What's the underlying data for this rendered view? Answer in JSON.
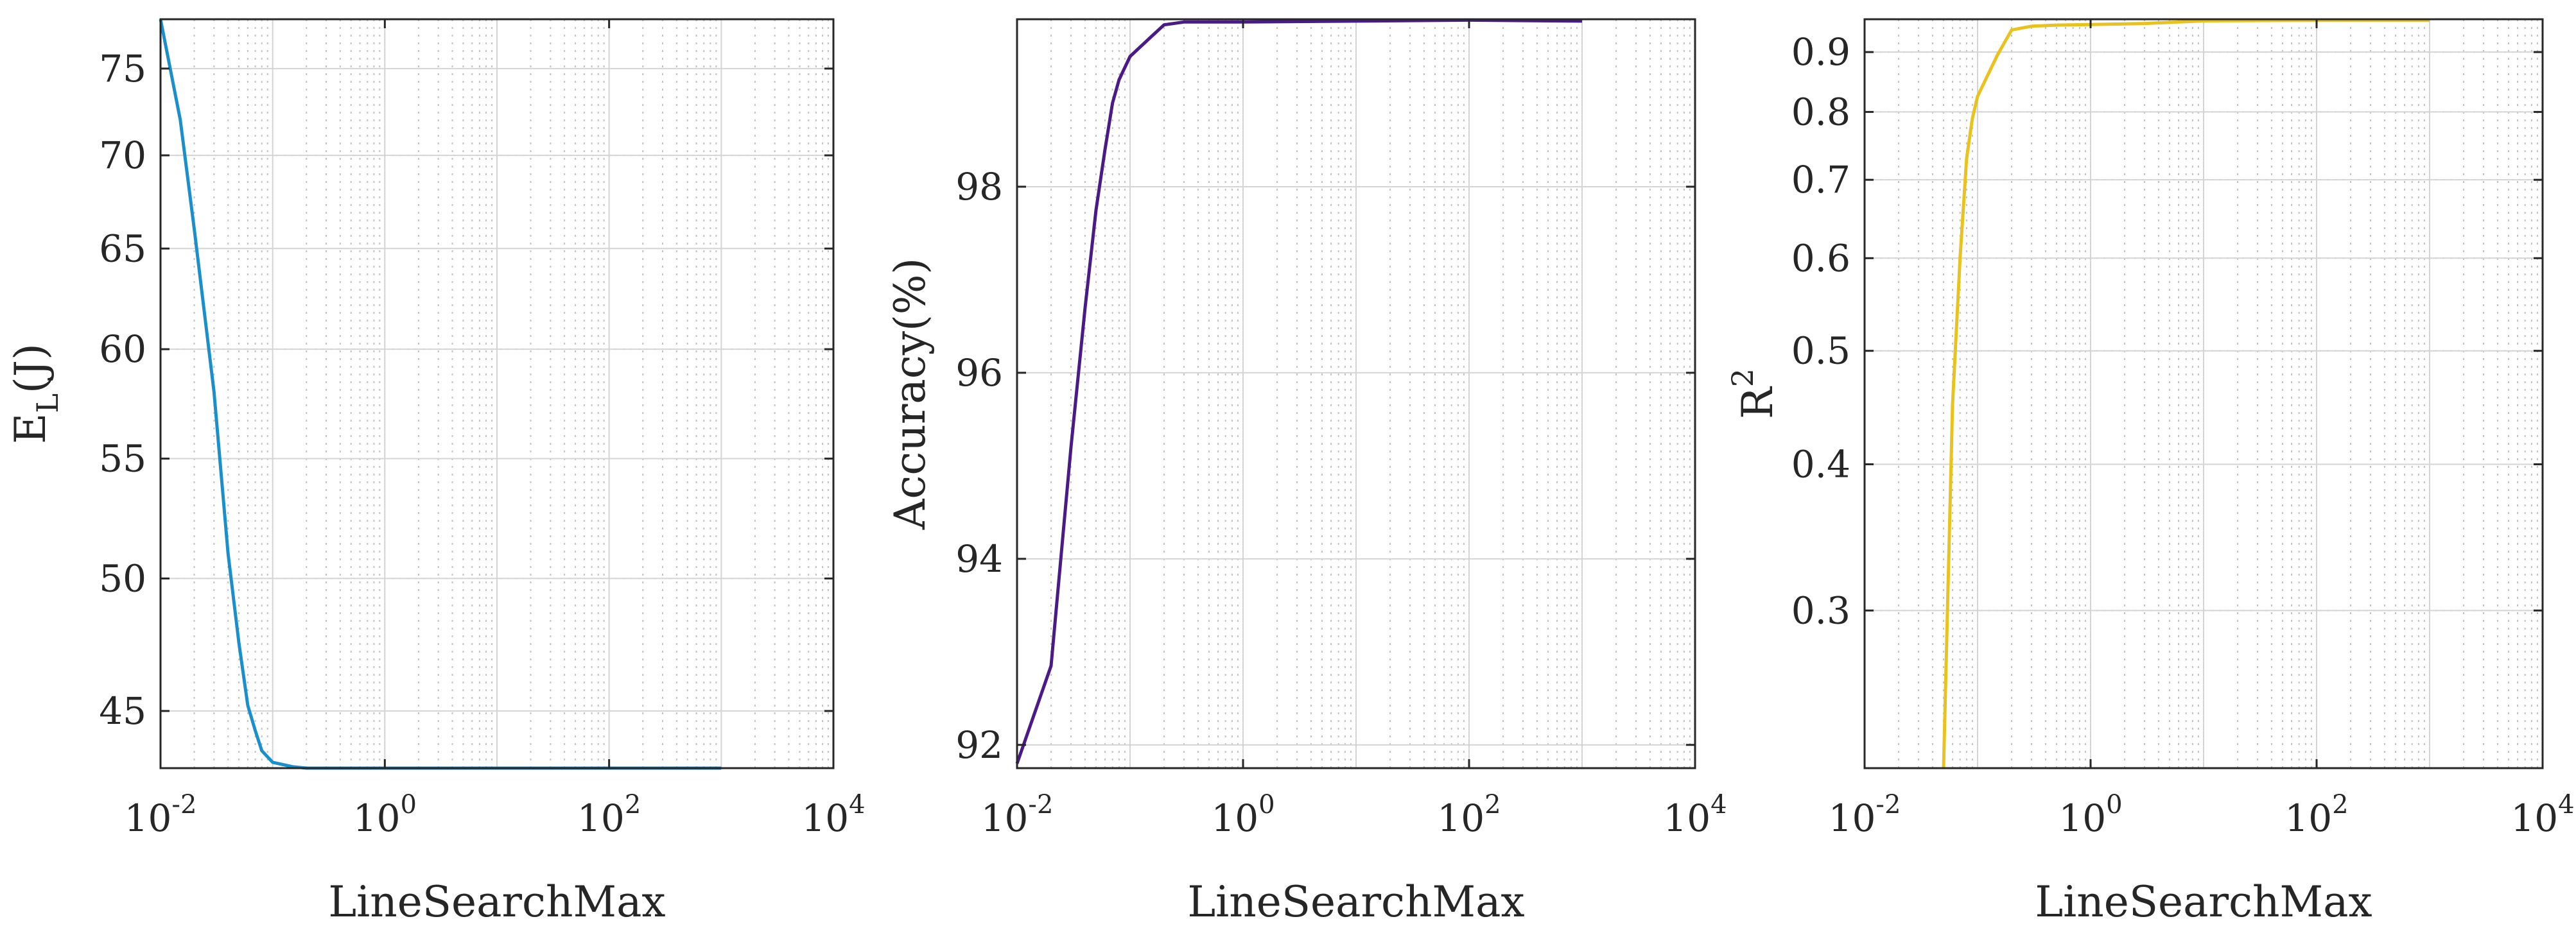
{
  "chart_data": [
    {
      "type": "line",
      "xscale": "log",
      "yscale": "log",
      "xlim": [
        0.01,
        10000
      ],
      "ylim": [
        43,
        78
      ],
      "xticks": [
        0.01,
        1,
        100,
        10000
      ],
      "xtick_base": [
        "10",
        "10",
        "10",
        "10"
      ],
      "xtick_exp": [
        "-2",
        "0",
        "2",
        "4"
      ],
      "yticks": [
        45,
        50,
        55,
        60,
        65,
        70,
        75
      ],
      "ytick_labels": [
        "45",
        "50",
        "55",
        "60",
        "65",
        "70",
        "75"
      ],
      "xlabel": "LineSearchMax",
      "ylabel_main": "E",
      "ylabel_sub": "L",
      "ylabel_unit": "(J)",
      "grid": true,
      "color": "#1a8fc9",
      "series": [
        {
          "name": "E_L",
          "x": [
            0.01,
            0.015,
            0.02,
            0.03,
            0.04,
            0.05,
            0.06,
            0.07,
            0.08,
            0.1,
            0.15,
            0.2,
            0.3,
            0.5,
            1,
            10,
            100,
            1000
          ],
          "y": [
            78,
            72,
            66,
            58,
            51,
            47.5,
            45.2,
            44.3,
            43.6,
            43.2,
            43.05,
            43.0,
            43.0,
            43.0,
            43.0,
            43.0,
            43.0,
            43.0
          ]
        }
      ]
    },
    {
      "type": "line",
      "xscale": "log",
      "yscale": "linear",
      "xlim": [
        0.01,
        10000
      ],
      "ylim": [
        91.75,
        99.8
      ],
      "xticks": [
        0.01,
        1,
        100,
        10000
      ],
      "xtick_base": [
        "10",
        "10",
        "10",
        "10"
      ],
      "xtick_exp": [
        "-2",
        "0",
        "2",
        "4"
      ],
      "yticks": [
        92,
        94,
        96,
        98
      ],
      "ytick_labels": [
        "92",
        "94",
        "96",
        "98"
      ],
      "xlabel": "LineSearchMax",
      "ylabel": "Accuracy(%)",
      "grid": true,
      "color": "#4a1a86",
      "series": [
        {
          "name": "Accuracy",
          "x": [
            0.01,
            0.02,
            0.03,
            0.04,
            0.05,
            0.06,
            0.07,
            0.08,
            0.1,
            0.15,
            0.2,
            0.3,
            0.5,
            1,
            10,
            100,
            1000
          ],
          "y": [
            91.8,
            92.85,
            95.2,
            96.7,
            97.75,
            98.4,
            98.9,
            99.15,
            99.4,
            99.6,
            99.74,
            99.77,
            99.77,
            99.77,
            99.78,
            99.79,
            99.78
          ]
        }
      ]
    },
    {
      "type": "line",
      "xscale": "log",
      "yscale": "log",
      "xlim": [
        0.01,
        10000
      ],
      "ylim": [
        0.22,
        0.96
      ],
      "xticks": [
        0.01,
        1,
        100,
        10000
      ],
      "xtick_base": [
        "10",
        "10",
        "10",
        "10"
      ],
      "xtick_exp": [
        "-2",
        "0",
        "2",
        "4"
      ],
      "yticks": [
        0.3,
        0.4,
        0.5,
        0.6,
        0.7,
        0.8,
        0.9
      ],
      "ytick_labels": [
        "0.3",
        "0.4",
        "0.5",
        "0.6",
        "0.7",
        "0.8",
        "0.9"
      ],
      "xlabel": "LineSearchMax",
      "ylabel_main": "R",
      "ylabel_sup": "2",
      "grid": true,
      "color": "#e8c21d",
      "series": [
        {
          "name": "R2",
          "x": [
            0.05,
            0.06,
            0.07,
            0.08,
            0.09,
            0.1,
            0.15,
            0.2,
            0.3,
            0.5,
            1,
            3,
            10,
            100,
            1000
          ],
          "y": [
            0.22,
            0.45,
            0.6,
            0.73,
            0.79,
            0.825,
            0.895,
            0.94,
            0.947,
            0.949,
            0.95,
            0.952,
            0.957,
            0.958,
            0.958
          ]
        }
      ]
    }
  ]
}
